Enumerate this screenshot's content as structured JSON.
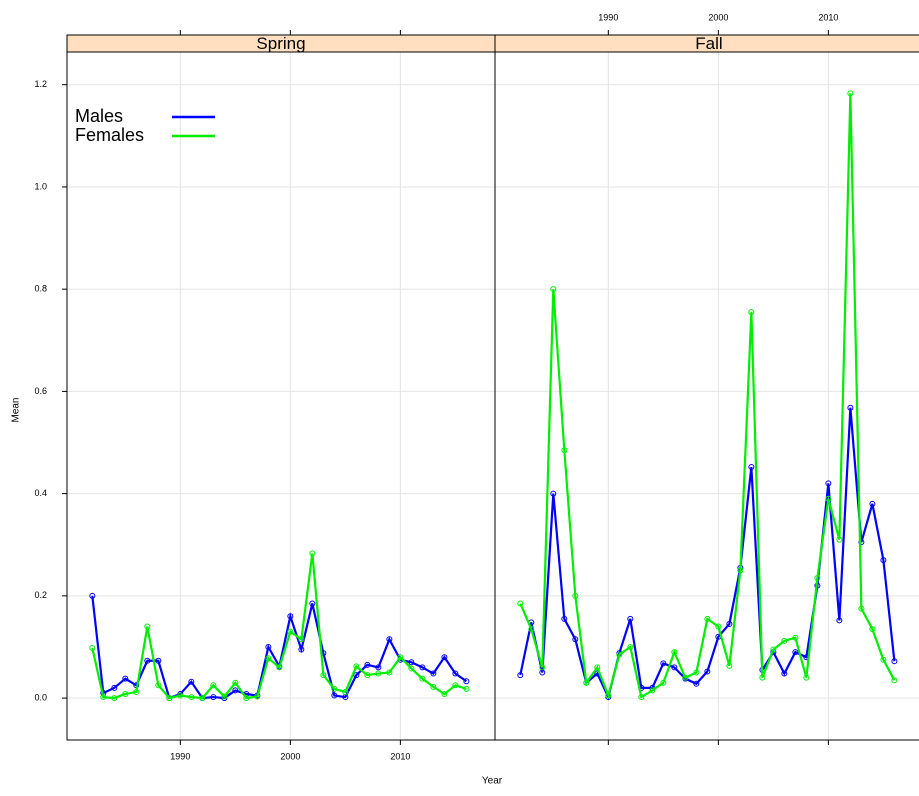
{
  "chart_data": {
    "type": "line",
    "x_label": "Year",
    "y_label": "Mean",
    "x": [
      1982,
      1983,
      1984,
      1985,
      1986,
      1987,
      1988,
      1989,
      1990,
      1991,
      1992,
      1993,
      1994,
      1995,
      1996,
      1997,
      1998,
      1999,
      2000,
      2001,
      2002,
      2003,
      2004,
      2005,
      2006,
      2007,
      2008,
      2009,
      2010,
      2011,
      2012,
      2013,
      2014,
      2015,
      2016
    ],
    "xlim": [
      1979.7,
      2018.6
    ],
    "xticks": [
      1990,
      2000,
      2010
    ],
    "ylim": [
      -0.082,
      1.264
    ],
    "yticks": [
      {
        "value": 0,
        "label": "0.0"
      },
      {
        "value": 0.2,
        "label": "0.2"
      },
      {
        "value": 0.4,
        "label": "0.4"
      },
      {
        "value": 0.6,
        "label": "0.6"
      },
      {
        "value": 0.8,
        "label": "0.8"
      },
      {
        "value": 1.0,
        "label": "1.0"
      },
      {
        "value": 1.2,
        "label": "1.2"
      }
    ],
    "grid": true,
    "legend": "top-left",
    "panels": [
      {
        "title": "Spring",
        "series": [
          {
            "name": "Males",
            "color": "#0000ff",
            "values": [
              0.2,
              0.01,
              0.02,
              0.038,
              0.025,
              0.073,
              0.073,
              0.0,
              0.008,
              0.032,
              0.0,
              0.002,
              0.0,
              0.015,
              0.008,
              0.005,
              0.1,
              0.062,
              0.16,
              0.095,
              0.185,
              0.088,
              0.005,
              0.002,
              0.045,
              0.065,
              0.06,
              0.115,
              0.075,
              0.07,
              0.06,
              0.048,
              0.08,
              0.048,
              0.033
            ]
          },
          {
            "name": "Females",
            "color": "#00ee00",
            "values": [
              0.098,
              0.002,
              0.0,
              0.008,
              0.012,
              0.14,
              0.025,
              0.0,
              0.005,
              0.002,
              0.0,
              0.025,
              0.003,
              0.03,
              0.0,
              0.003,
              0.078,
              0.06,
              0.13,
              0.115,
              0.283,
              0.045,
              0.018,
              0.012,
              0.062,
              0.045,
              0.048,
              0.05,
              0.08,
              0.058,
              0.038,
              0.022,
              0.008,
              0.025,
              0.018
            ]
          }
        ]
      },
      {
        "title": "Fall",
        "series": [
          {
            "color": "#0000ff",
            "values": [
              0.045,
              0.148,
              0.05,
              0.4,
              0.155,
              0.115,
              0.03,
              0.048,
              0.002,
              0.088,
              0.155,
              0.02,
              0.02,
              0.068,
              0.06,
              0.038,
              0.028,
              0.052,
              0.12,
              0.145,
              0.255,
              0.452,
              0.055,
              0.09,
              0.048,
              0.09,
              0.08,
              0.22,
              0.42,
              0.152,
              0.568,
              0.305,
              0.38,
              0.27,
              0.072
            ]
          },
          {
            "color": "#00ee00",
            "values": [
              0.185,
              0.135,
              0.06,
              0.8,
              0.485,
              0.2,
              0.03,
              0.06,
              0.005,
              0.085,
              0.1,
              0.002,
              0.015,
              0.03,
              0.09,
              0.04,
              0.05,
              0.155,
              0.14,
              0.063,
              0.25,
              0.755,
              0.04,
              0.095,
              0.112,
              0.118,
              0.04,
              0.235,
              0.39,
              0.31,
              1.183,
              0.175,
              0.135,
              0.075,
              0.035
            ]
          }
        ]
      }
    ]
  }
}
